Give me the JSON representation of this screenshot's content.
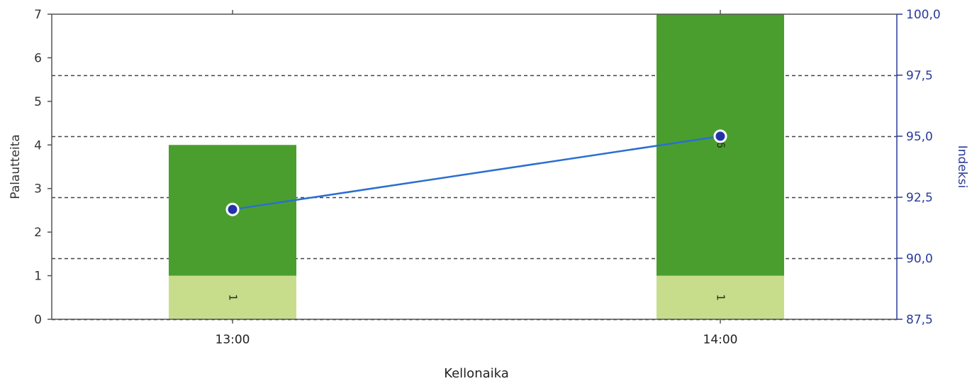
{
  "chart_data": {
    "type": "bar",
    "stacked": true,
    "categories": [
      "13:00",
      "14:00"
    ],
    "series": [
      {
        "values": [
          1,
          1
        ],
        "segment_labels": [
          "1",
          "1"
        ],
        "color": "#c8dd8c"
      },
      {
        "values": [
          3,
          6
        ],
        "segment_labels": [
          "3",
          "6"
        ],
        "color": "#4a9e2e"
      }
    ],
    "line_series": [
      {
        "values": [
          92.0,
          95.0
        ],
        "axis": "right",
        "color": "#2a6fcf",
        "marker_color": "#2233aa"
      }
    ],
    "xlabel": "Kellonaika",
    "ylabel_left": "Palautteita",
    "ylabel_right": "Indeksi",
    "ylim_left": [
      0,
      7
    ],
    "yticks_left": [
      "0",
      "1",
      "2",
      "3",
      "4",
      "5",
      "6",
      "7"
    ],
    "ylim_right": [
      87.5,
      100
    ],
    "yticks_right": [
      "87,5",
      "90,0",
      "92,5",
      "95,0",
      "97,5",
      "100,0"
    ],
    "yticks_right_values": [
      87.5,
      90,
      92.5,
      95,
      97.5,
      100
    ],
    "grid": "horizontal dashed (right axis)",
    "legend": "none"
  }
}
